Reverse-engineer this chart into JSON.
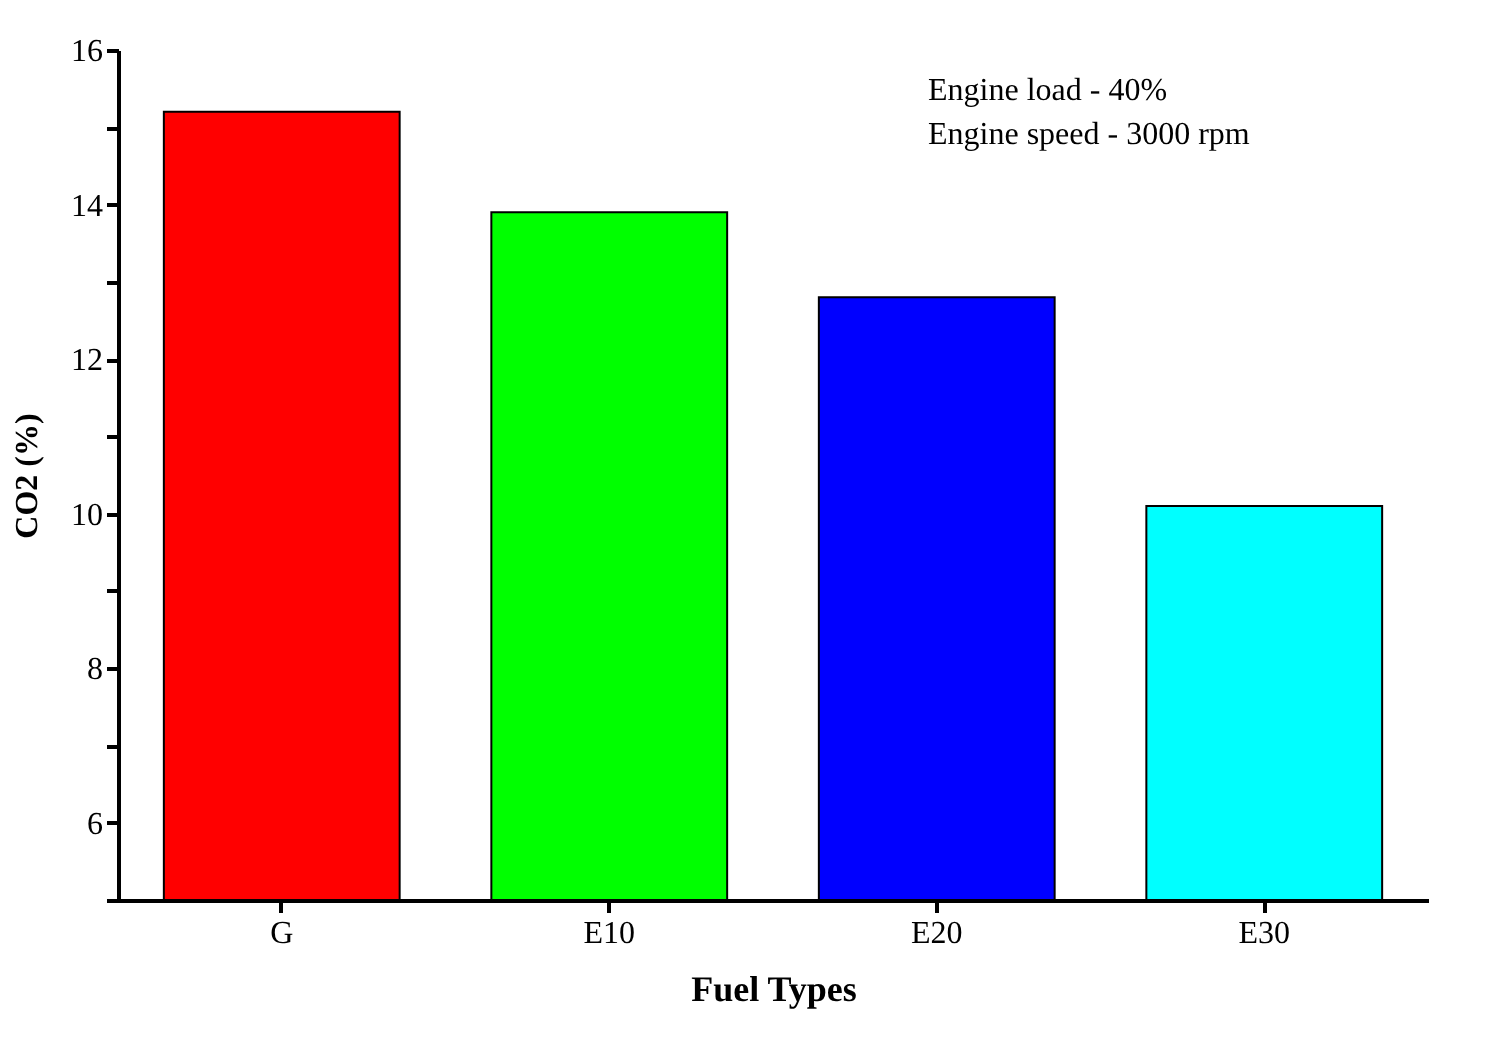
{
  "chart_data": {
    "type": "bar",
    "categories": [
      "G",
      "E10",
      "E20",
      "E30"
    ],
    "values": [
      15.2,
      13.9,
      12.8,
      10.1
    ],
    "colors": [
      "#ff0000",
      "#00ff00",
      "#0000ff",
      "#00ffff"
    ],
    "xlabel": "Fuel Types",
    "ylabel": "CO2 (%)",
    "ylim": [
      5,
      16
    ],
    "yticks": [
      {
        "value": 5,
        "label": null
      },
      6,
      {
        "value": 7,
        "label": null
      },
      8,
      {
        "value": 9,
        "label": null
      },
      10,
      {
        "value": 11,
        "label": null
      },
      12,
      {
        "value": 13,
        "label": null
      },
      14,
      {
        "value": 15,
        "label": null
      },
      16
    ],
    "annotations": [
      "Engine load - 40%",
      "Engine speed - 3000 rpm"
    ],
    "grid": false,
    "legend": false
  }
}
